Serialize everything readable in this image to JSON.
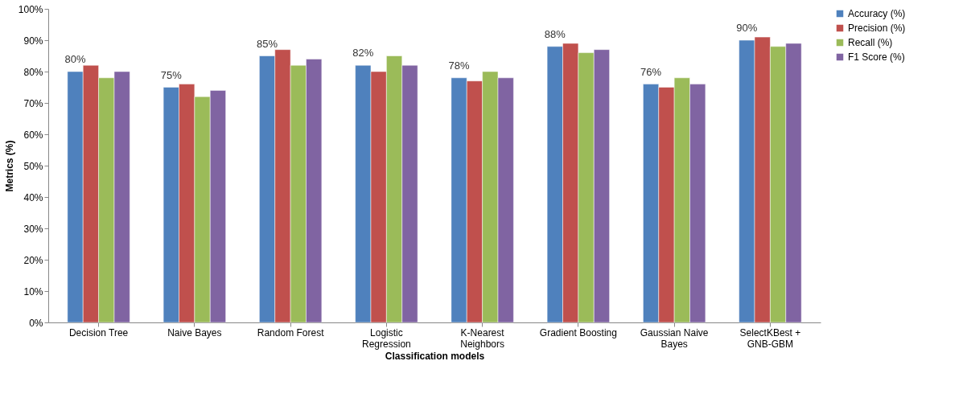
{
  "chart_data": {
    "type": "bar",
    "xlabel": "Classification  models",
    "ylabel": "Metrics (%)",
    "categories": [
      "Decision Tree",
      "Naive Bayes",
      "Random Forest",
      "Logistic Regression",
      "K-Nearest Neighbors",
      "Gradient Boosting",
      "Gaussian Naive Bayes",
      "SelectKBest + GNB-GBM"
    ],
    "series": [
      {
        "name": "Accuracy (%)",
        "color": "#4f81bd",
        "values": [
          80,
          75,
          85,
          82,
          78,
          88,
          76,
          90
        ],
        "value_labels": [
          "80%",
          "75%",
          "85%",
          "82%",
          "78%",
          "88%",
          "76%",
          "90%"
        ]
      },
      {
        "name": "Precision (%)",
        "color": "#c0504d",
        "values": [
          82,
          76,
          87,
          80,
          77,
          89,
          75,
          91
        ]
      },
      {
        "name": "Recall (%)",
        "color": "#9bbb59",
        "values": [
          78,
          72,
          82,
          85,
          80,
          86,
          78,
          88
        ]
      },
      {
        "name": "F1 Score (%)",
        "color": "#8064a2",
        "values": [
          80,
          74,
          84,
          82,
          78,
          87,
          76,
          89
        ]
      }
    ],
    "ylim": [
      0,
      100
    ],
    "yticks": [
      {
        "value": 0,
        "label": "0%"
      },
      {
        "value": 10,
        "label": "10%"
      },
      {
        "value": 20,
        "label": "20%"
      },
      {
        "value": 30,
        "label": "30%"
      },
      {
        "value": 40,
        "label": "40%"
      },
      {
        "value": 50,
        "label": "50%"
      },
      {
        "value": 60,
        "label": "60%"
      },
      {
        "value": 70,
        "label": "70%"
      },
      {
        "value": 80,
        "label": "80%"
      },
      {
        "value": 90,
        "label": "90%"
      },
      {
        "value": 100,
        "label": "100%"
      }
    ],
    "grid": false,
    "legend": "right"
  }
}
